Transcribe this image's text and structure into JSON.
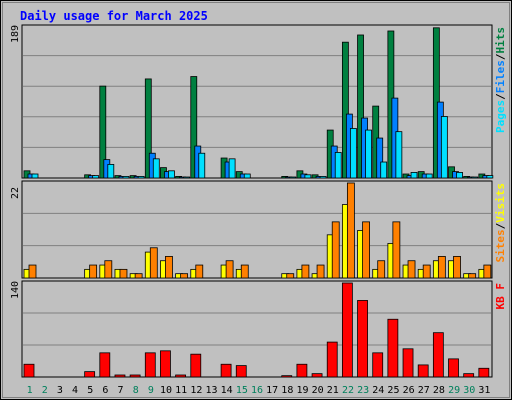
{
  "colors": {
    "background": "#c0c0c0",
    "panel": "#c0c0c0",
    "grid": "#808080",
    "title": "#0000ff",
    "hits": "#008040",
    "files": "#0080ff",
    "pages": "#00e0ff",
    "visits": "#ffff00",
    "sites": "#ff8000",
    "kbytes": "#ff0000",
    "weekday": "#000000",
    "weekend": "#00805c"
  },
  "chart_data": {
    "type": "bar",
    "title": "Daily usage for March 2025",
    "categories": [
      "1",
      "2",
      "3",
      "4",
      "5",
      "6",
      "7",
      "8",
      "9",
      "10",
      "11",
      "12",
      "13",
      "14",
      "15",
      "16",
      "17",
      "18",
      "19",
      "20",
      "21",
      "22",
      "23",
      "24",
      "25",
      "26",
      "27",
      "28",
      "29",
      "30",
      "31"
    ],
    "weekend_days": [
      "1",
      "2",
      "8",
      "9",
      "15",
      "16",
      "22",
      "23",
      "29",
      "30"
    ],
    "panels": [
      {
        "id": "hits-files-pages",
        "ymax_label": "189",
        "ymax": 189,
        "legend": [
          "Pages",
          "/",
          "Files",
          "/",
          "Hits"
        ],
        "series": [
          {
            "name": "Hits",
            "values": [
              9,
              0,
              0,
              0,
              4,
              115,
              3,
              3,
              124,
              13,
              2,
              127,
              0,
              25,
              8,
              0,
              0,
              2,
              9,
              4,
              60,
              170,
              179,
              90,
              184,
              5,
              8,
              188,
              14,
              2,
              5
            ]
          },
          {
            "name": "Files",
            "values": [
              5,
              0,
              0,
              0,
              3,
              23,
              2,
              2,
              31,
              8,
              1,
              40,
              0,
              20,
              5,
              0,
              0,
              1,
              5,
              2,
              40,
              80,
              75,
              50,
              100,
              3,
              5,
              95,
              8,
              1,
              3
            ]
          },
          {
            "name": "Pages",
            "values": [
              5,
              0,
              0,
              0,
              3,
              17,
              2,
              2,
              24,
              9,
              1,
              31,
              0,
              24,
              5,
              0,
              0,
              1,
              4,
              2,
              32,
              62,
              60,
              20,
              58,
              7,
              5,
              77,
              7,
              1,
              3
            ]
          }
        ]
      },
      {
        "id": "visits-sites",
        "ymax_label": "22",
        "ymax": 22,
        "legend": [
          "Sites",
          "/",
          "Visits"
        ],
        "series": [
          {
            "name": "Visits",
            "values": [
              2,
              0,
              0,
              0,
              2,
              3,
              2,
              1,
              6,
              4,
              1,
              2,
              0,
              3,
              2,
              0,
              0,
              1,
              2,
              1,
              10,
              17,
              11,
              2,
              8,
              3,
              2,
              4,
              4,
              1,
              2
            ]
          },
          {
            "name": "Sites",
            "values": [
              3,
              0,
              0,
              0,
              3,
              4,
              2,
              1,
              7,
              5,
              1,
              3,
              0,
              4,
              3,
              0,
              0,
              1,
              3,
              3,
              13,
              22,
              13,
              4,
              13,
              4,
              3,
              5,
              5,
              1,
              3
            ]
          }
        ]
      },
      {
        "id": "kbytes",
        "ymax_label": "140",
        "ymax": 140,
        "legend": [
          "KB F"
        ],
        "series": [
          {
            "name": "KB F",
            "values": [
              19,
              0,
              0,
              0,
              8,
              36,
              3,
              3,
              36,
              39,
              3,
              34,
              0,
              19,
              17,
              0,
              0,
              2,
              19,
              5,
              52,
              140,
              114,
              36,
              86,
              42,
              18,
              66,
              27,
              5,
              13
            ]
          }
        ]
      }
    ]
  }
}
